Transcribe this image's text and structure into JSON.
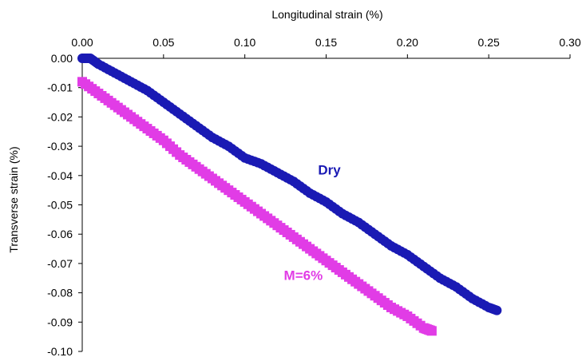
{
  "chart_data": {
    "type": "scatter",
    "xlabel": "Longitudinal strain (%)",
    "ylabel": "Transverse strain (%)",
    "xlim": [
      0,
      0.3
    ],
    "ylim": [
      -0.1,
      0
    ],
    "x_ticks": [
      "0.00",
      "0.05",
      "0.10",
      "0.15",
      "0.20",
      "0.25",
      "0.30"
    ],
    "y_ticks": [
      "0.00",
      "-0.01",
      "-0.02",
      "-0.03",
      "-0.04",
      "-0.05",
      "-0.06",
      "-0.07",
      "-0.08",
      "-0.09",
      "-0.10"
    ],
    "x_axis_position": "top",
    "grid": false,
    "legend": "none",
    "series": [
      {
        "name": "Dry",
        "marker": "circle",
        "color": "#1a1ab4",
        "x": [
          0.0,
          0.005,
          0.01,
          0.02,
          0.03,
          0.04,
          0.05,
          0.06,
          0.07,
          0.08,
          0.09,
          0.1,
          0.11,
          0.12,
          0.13,
          0.14,
          0.15,
          0.16,
          0.17,
          0.18,
          0.19,
          0.2,
          0.21,
          0.22,
          0.23,
          0.24,
          0.25,
          0.255
        ],
        "values": [
          0.0,
          0.0,
          -0.002,
          -0.005,
          -0.008,
          -0.011,
          -0.015,
          -0.019,
          -0.023,
          -0.027,
          -0.03,
          -0.034,
          -0.036,
          -0.039,
          -0.042,
          -0.046,
          -0.049,
          -0.053,
          -0.056,
          -0.06,
          -0.064,
          -0.067,
          -0.071,
          -0.075,
          -0.078,
          -0.082,
          -0.085,
          -0.086
        ]
      },
      {
        "name": "M=6%",
        "marker": "square",
        "color": "#e13ce6",
        "x": [
          0.0,
          0.01,
          0.02,
          0.03,
          0.04,
          0.05,
          0.06,
          0.07,
          0.08,
          0.09,
          0.1,
          0.11,
          0.12,
          0.13,
          0.14,
          0.15,
          0.16,
          0.17,
          0.18,
          0.19,
          0.2,
          0.21,
          0.215
        ],
        "values": [
          -0.008,
          -0.012,
          -0.016,
          -0.02,
          -0.024,
          -0.028,
          -0.033,
          -0.037,
          -0.041,
          -0.045,
          -0.049,
          -0.053,
          -0.057,
          -0.061,
          -0.065,
          -0.069,
          -0.073,
          -0.077,
          -0.081,
          -0.085,
          -0.088,
          -0.092,
          -0.093
        ]
      }
    ],
    "annotations": [
      {
        "text": "Dry",
        "x": 0.145,
        "y": -0.038,
        "color": "#1a1ab4"
      },
      {
        "text": "M=6%",
        "x": 0.124,
        "y": -0.074,
        "color": "#e13ce6"
      }
    ]
  }
}
